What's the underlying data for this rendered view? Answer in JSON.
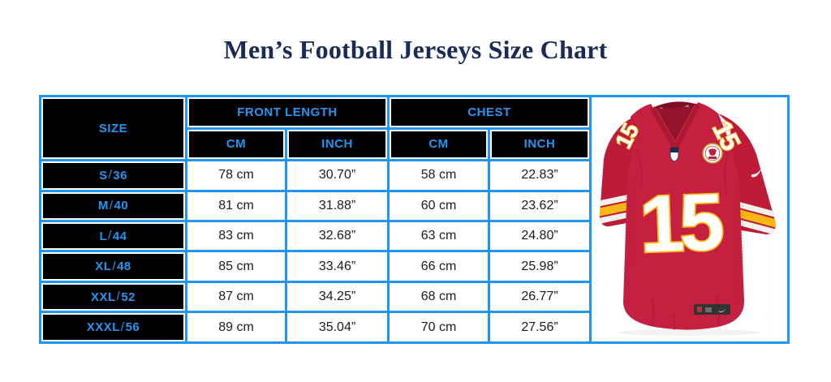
{
  "page": {
    "title": "Men’s Football Jerseys Size Chart"
  },
  "colors": {
    "accent_blue": "#2196F3",
    "header_cell_bg": "#000000",
    "title_navy": "#1b2b57",
    "jersey_red": "#C52040",
    "jersey_gold": "#FDB714",
    "value_text": "#1c1c1c"
  },
  "chart_data": {
    "type": "table",
    "title": "Men’s Football Jerseys Size Chart",
    "column_groups": {
      "size": "SIZE",
      "front_length": "FRONT LENGTH",
      "chest": "CHEST",
      "cm": "CM",
      "inch": "INCH"
    },
    "columns": [
      "SIZE",
      "FRONT LENGTH CM",
      "FRONT LENGTH INCH",
      "CHEST CM",
      "CHEST INCH"
    ],
    "rows": [
      [
        "S/36",
        "78 cm",
        "30.70”",
        "58 cm",
        "22.83”"
      ],
      [
        "M/40",
        "81 cm",
        "31.88”",
        "60 cm",
        "23.62”"
      ],
      [
        "L/44",
        "83 cm",
        "32.68”",
        "63 cm",
        "24.80”"
      ],
      [
        "XL/48",
        "85 cm",
        "33.46”",
        "66 cm",
        "25.98”"
      ],
      [
        "XXL/52",
        "87 cm",
        "34.25”",
        "68 cm",
        "26.77”"
      ],
      [
        "XXXL/56",
        "89 cm",
        "35.04”",
        "70 cm",
        "27.56”"
      ]
    ]
  },
  "jersey": {
    "number": "15"
  }
}
